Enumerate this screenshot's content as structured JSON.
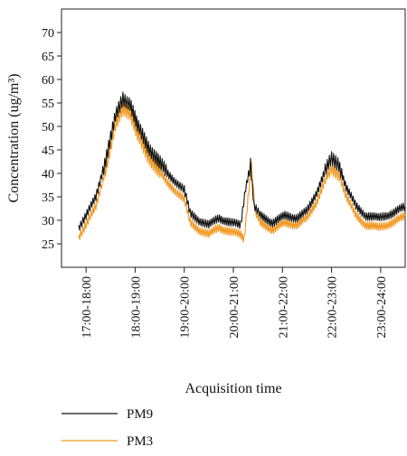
{
  "chart_data": {
    "type": "line",
    "title": "",
    "xlabel": "Acquisition time",
    "ylabel": "Concentration (ug/m³)",
    "ylim": [
      20,
      75
    ],
    "yticks": [
      25,
      30,
      35,
      40,
      45,
      50,
      55,
      60,
      65,
      70
    ],
    "categories": [
      "17:00-18:00",
      "18:00-19:00",
      "19:00-20:00",
      "20:00-21:00",
      "21:00-22:00",
      "22:00-23:00",
      "23:00-24:00"
    ],
    "xlim": [
      17.0,
      24.0
    ],
    "grid": false,
    "legend_position": "bottom-left",
    "series": [
      {
        "name": "PM9",
        "color": "#111111",
        "points": [
          [
            17.35,
            28.5
          ],
          [
            17.5,
            31
          ],
          [
            17.7,
            35
          ],
          [
            17.9,
            43
          ],
          [
            18.1,
            52
          ],
          [
            18.25,
            56
          ],
          [
            18.4,
            55
          ],
          [
            18.55,
            50
          ],
          [
            18.75,
            46
          ],
          [
            18.95,
            43
          ],
          [
            19.15,
            40
          ],
          [
            19.35,
            38
          ],
          [
            19.5,
            36.5
          ],
          [
            19.62,
            31.5
          ],
          [
            19.8,
            30
          ],
          [
            20.0,
            29
          ],
          [
            20.2,
            30.5
          ],
          [
            20.45,
            29.5
          ],
          [
            20.65,
            29
          ],
          [
            20.75,
            37
          ],
          [
            20.85,
            42
          ],
          [
            20.92,
            33
          ],
          [
            21.05,
            31
          ],
          [
            21.3,
            29.5
          ],
          [
            21.55,
            31
          ],
          [
            21.8,
            30.5
          ],
          [
            22.0,
            32
          ],
          [
            22.2,
            36
          ],
          [
            22.35,
            40
          ],
          [
            22.5,
            43
          ],
          [
            22.65,
            42
          ],
          [
            22.8,
            37
          ],
          [
            23.0,
            33
          ],
          [
            23.2,
            31
          ],
          [
            23.45,
            30.5
          ],
          [
            23.75,
            31.5
          ],
          [
            24.0,
            33
          ]
        ]
      },
      {
        "name": "PM3",
        "color": "#F0961E",
        "points": [
          [
            17.35,
            26.5
          ],
          [
            17.5,
            29
          ],
          [
            17.7,
            33
          ],
          [
            17.9,
            41
          ],
          [
            18.1,
            50
          ],
          [
            18.25,
            54
          ],
          [
            18.4,
            53
          ],
          [
            18.55,
            48
          ],
          [
            18.75,
            44
          ],
          [
            18.95,
            41
          ],
          [
            19.15,
            38
          ],
          [
            19.35,
            36
          ],
          [
            19.5,
            34.5
          ],
          [
            19.62,
            29.5
          ],
          [
            19.8,
            28
          ],
          [
            20.0,
            27
          ],
          [
            20.2,
            28.5
          ],
          [
            20.45,
            27.5
          ],
          [
            20.65,
            27
          ],
          [
            20.72,
            26
          ],
          [
            20.8,
            35
          ],
          [
            20.87,
            41
          ],
          [
            20.95,
            31.5
          ],
          [
            21.05,
            29.5
          ],
          [
            21.3,
            28
          ],
          [
            21.55,
            29.5
          ],
          [
            21.8,
            29
          ],
          [
            22.0,
            30.5
          ],
          [
            22.2,
            34
          ],
          [
            22.35,
            38
          ],
          [
            22.5,
            41
          ],
          [
            22.65,
            40
          ],
          [
            22.8,
            35
          ],
          [
            23.0,
            31
          ],
          [
            23.2,
            29
          ],
          [
            23.45,
            28.5
          ],
          [
            23.75,
            29.5
          ],
          [
            24.0,
            31
          ]
        ]
      }
    ]
  }
}
